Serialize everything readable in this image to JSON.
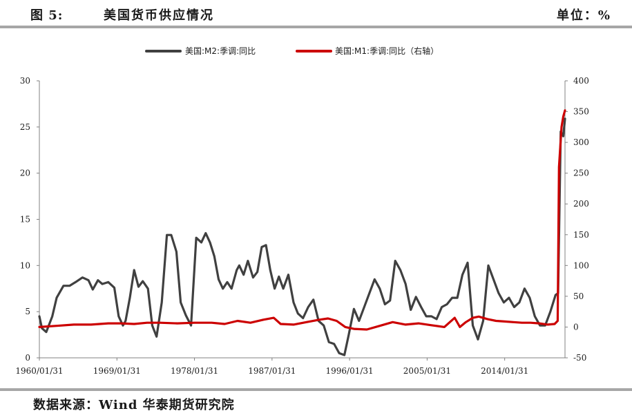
{
  "header": {
    "figure_label": "图 5:",
    "title": "美国货币供应情况",
    "unit": "单位：%"
  },
  "footer": {
    "source": "数据来源：Wind 华泰期货研究院"
  },
  "colors": {
    "m2": "#404040",
    "m1": "#cc0000",
    "rule": "#a6a6a6"
  },
  "chart_data": {
    "type": "line",
    "title": "",
    "xlabel": "",
    "ylabel": "",
    "x_ticks": [
      "1960/01/31",
      "1969/01/31",
      "1978/01/31",
      "1987/01/31",
      "1996/01/31",
      "2005/01/31",
      "2014/01/31"
    ],
    "x_range": [
      1960.0,
      2021.0
    ],
    "y_left": {
      "range": [
        0,
        30
      ],
      "ticks": [
        0,
        5,
        10,
        15,
        20,
        25,
        30
      ]
    },
    "y_right": {
      "range": [
        -50,
        400
      ],
      "ticks": [
        -50,
        0,
        50,
        100,
        150,
        200,
        250,
        300,
        350,
        400
      ]
    },
    "legend": {
      "position": "top-center"
    },
    "series": [
      {
        "name": "美国:M2:季调:同比",
        "axis": "left",
        "color": "#404040",
        "x": [
          1960.0,
          1960.3,
          1960.8,
          1961.5,
          1962.0,
          1962.8,
          1963.5,
          1964.2,
          1965.0,
          1965.7,
          1966.2,
          1966.8,
          1967.3,
          1968.0,
          1968.7,
          1969.2,
          1969.7,
          1970.0,
          1970.5,
          1971.0,
          1971.5,
          1972.0,
          1972.6,
          1973.1,
          1973.6,
          1974.2,
          1974.8,
          1975.3,
          1975.9,
          1976.4,
          1977.0,
          1977.6,
          1978.2,
          1978.8,
          1979.3,
          1979.8,
          1980.3,
          1980.8,
          1981.3,
          1981.8,
          1982.3,
          1982.9,
          1983.2,
          1983.7,
          1984.2,
          1984.8,
          1985.3,
          1985.8,
          1986.3,
          1986.8,
          1987.3,
          1987.8,
          1988.3,
          1988.9,
          1989.5,
          1990.0,
          1990.6,
          1991.2,
          1991.8,
          1992.4,
          1993.0,
          1993.6,
          1994.2,
          1994.8,
          1995.4,
          1995.9,
          1996.5,
          1997.1,
          1997.7,
          1998.3,
          1998.9,
          1999.5,
          2000.1,
          2000.7,
          2001.3,
          2001.9,
          2002.5,
          2003.1,
          2003.7,
          2004.3,
          2004.9,
          2005.5,
          2006.1,
          2006.7,
          2007.3,
          2007.9,
          2008.5,
          2009.1,
          2009.7,
          2010.3,
          2010.9,
          2011.5,
          2012.1,
          2012.7,
          2013.3,
          2013.9,
          2014.5,
          2015.1,
          2015.7,
          2016.3,
          2016.9,
          2017.5,
          2018.1,
          2018.7,
          2019.3,
          2019.9,
          2020.2,
          2020.5,
          2020.8,
          2021.0
        ],
        "values": [
          4.5,
          3.2,
          2.8,
          4.5,
          6.5,
          7.8,
          7.8,
          8.2,
          8.7,
          8.4,
          7.4,
          8.4,
          8.0,
          8.2,
          7.6,
          4.5,
          3.5,
          4.0,
          6.5,
          9.5,
          7.7,
          8.3,
          7.5,
          3.5,
          2.3,
          6.0,
          13.3,
          13.3,
          11.5,
          6.0,
          4.6,
          3.5,
          13.0,
          12.5,
          13.5,
          12.5,
          11.0,
          8.5,
          7.5,
          8.2,
          7.5,
          9.5,
          10.0,
          9.0,
          10.5,
          8.7,
          9.3,
          12.0,
          12.2,
          9.5,
          7.5,
          8.8,
          7.5,
          9.0,
          6.0,
          4.8,
          4.3,
          5.5,
          6.3,
          4.0,
          3.5,
          1.7,
          1.5,
          0.5,
          0.3,
          2.5,
          5.3,
          4.0,
          5.5,
          7.0,
          8.5,
          7.5,
          5.8,
          6.2,
          10.5,
          9.5,
          8.0,
          5.2,
          6.6,
          5.5,
          4.5,
          4.5,
          4.2,
          5.5,
          5.8,
          6.5,
          6.5,
          9.0,
          10.3,
          3.5,
          2.0,
          4.0,
          10.0,
          8.5,
          7.0,
          6.0,
          6.5,
          5.5,
          6.0,
          7.5,
          6.5,
          4.5,
          3.5,
          3.5,
          5.0,
          6.8,
          7.0,
          24.5,
          24.0,
          25.9
        ]
      },
      {
        "name": "美国:M1:季调:同比（右轴）",
        "axis": "right",
        "color": "#cc0000",
        "x": [
          1960.0,
          1962.0,
          1964.0,
          1966.0,
          1968.0,
          1969.5,
          1971.0,
          1972.5,
          1974.0,
          1976.0,
          1978.0,
          1980.0,
          1981.5,
          1983.0,
          1984.5,
          1986.0,
          1987.2,
          1988.0,
          1989.5,
          1991.0,
          1992.5,
          1993.5,
          1994.5,
          1995.5,
          1996.5,
          1998.0,
          1999.5,
          2001.0,
          2002.5,
          2004.0,
          2005.5,
          2007.0,
          2008.2,
          2008.8,
          2009.5,
          2010.3,
          2011.0,
          2012.0,
          2013.0,
          2014.0,
          2015.0,
          2016.0,
          2017.0,
          2018.0,
          2019.0,
          2019.8,
          2020.15,
          2020.3,
          2020.6,
          2020.8,
          2021.0
        ],
        "values": [
          0,
          2,
          4,
          4,
          6,
          6,
          5,
          7,
          7,
          6,
          7,
          7,
          5,
          10,
          7,
          12,
          15,
          5,
          4,
          8,
          12,
          14,
          10,
          0,
          -3,
          -4,
          2,
          8,
          4,
          6,
          3,
          0,
          15,
          0,
          8,
          15,
          17,
          13,
          10,
          9,
          8,
          7,
          7,
          6,
          4,
          5,
          10,
          260,
          325,
          342,
          352
        ]
      }
    ]
  }
}
